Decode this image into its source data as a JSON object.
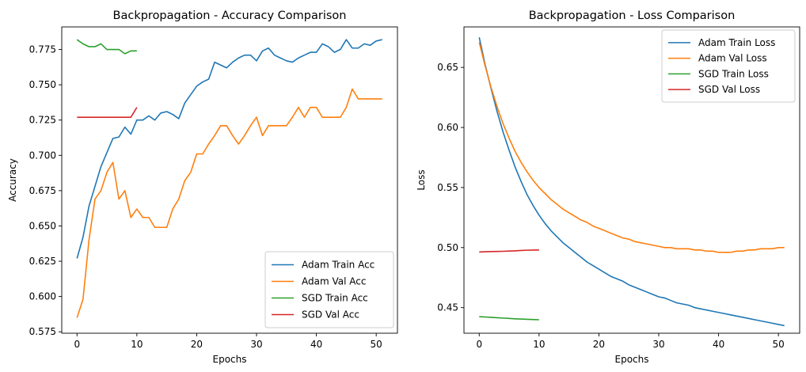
{
  "colors": {
    "adam_train": "#1f77b4",
    "adam_val": "#ff7f0e",
    "sgd_train": "#2ca02c",
    "sgd_val": "#d62728"
  },
  "chart_data": [
    {
      "type": "line",
      "title": "Backpropagation - Accuracy Comparison",
      "xlabel": "Epochs",
      "ylabel": "Accuracy",
      "xlim": [
        -2.55,
        53.55
      ],
      "ylim": [
        0.574,
        0.791
      ],
      "xticks": [
        0,
        10,
        20,
        30,
        40,
        50
      ],
      "yticks": [
        0.575,
        0.6,
        0.625,
        0.65,
        0.675,
        0.7,
        0.725,
        0.75,
        0.775
      ],
      "ytick_labels": [
        "0.575",
        "0.600",
        "0.625",
        "0.650",
        "0.675",
        "0.700",
        "0.725",
        "0.750",
        "0.775"
      ],
      "legend_position": "lower right",
      "grid": false,
      "series": [
        {
          "name": "Adam Train Acc",
          "color": "#1f77b4",
          "x0": 0,
          "values": [
            0.627,
            0.642,
            0.664,
            0.678,
            0.692,
            0.702,
            0.712,
            0.713,
            0.72,
            0.715,
            0.725,
            0.725,
            0.728,
            0.725,
            0.73,
            0.731,
            0.729,
            0.726,
            0.737,
            0.743,
            0.749,
            0.752,
            0.754,
            0.766,
            0.764,
            0.762,
            0.766,
            0.769,
            0.771,
            0.771,
            0.767,
            0.774,
            0.776,
            0.771,
            0.769,
            0.767,
            0.766,
            0.769,
            0.771,
            0.773,
            0.773,
            0.779,
            0.777,
            0.773,
            0.775,
            0.782,
            0.776,
            0.776,
            0.779,
            0.778,
            0.781,
            0.782
          ]
        },
        {
          "name": "Adam Val Acc",
          "color": "#ff7f0e",
          "x0": 0,
          "values": [
            0.585,
            0.598,
            0.64,
            0.669,
            0.675,
            0.688,
            0.695,
            0.669,
            0.675,
            0.656,
            0.662,
            0.656,
            0.656,
            0.649,
            0.649,
            0.649,
            0.662,
            0.669,
            0.682,
            0.688,
            0.701,
            0.701,
            0.708,
            0.714,
            0.721,
            0.721,
            0.714,
            0.708,
            0.714,
            0.721,
            0.727,
            0.714,
            0.721,
            0.721,
            0.721,
            0.721,
            0.727,
            0.734,
            0.727,
            0.734,
            0.734,
            0.727,
            0.727,
            0.727,
            0.727,
            0.734,
            0.747,
            0.74,
            0.74,
            0.74,
            0.74,
            0.74
          ]
        },
        {
          "name": "SGD Train Acc",
          "color": "#2ca02c",
          "x0": 0,
          "values": [
            0.782,
            0.779,
            0.777,
            0.777,
            0.779,
            0.775,
            0.775,
            0.775,
            0.772,
            0.774,
            0.774
          ]
        },
        {
          "name": "SGD Val Acc",
          "color": "#d62728",
          "x0": 0,
          "values": [
            0.727,
            0.727,
            0.727,
            0.727,
            0.727,
            0.727,
            0.727,
            0.727,
            0.727,
            0.727,
            0.734
          ]
        }
      ]
    },
    {
      "type": "line",
      "title": "Backpropagation - Loss Comparison",
      "xlabel": "Epochs",
      "ylabel": "Loss",
      "xlim": [
        -2.55,
        53.55
      ],
      "ylim": [
        0.4287,
        0.6837
      ],
      "xticks": [
        0,
        10,
        20,
        30,
        40,
        50
      ],
      "yticks": [
        0.45,
        0.5,
        0.55,
        0.6,
        0.65
      ],
      "ytick_labels": [
        "0.45",
        "0.50",
        "0.55",
        "0.60",
        "0.65"
      ],
      "legend_position": "upper right",
      "grid": false,
      "series": [
        {
          "name": "Adam Train Loss",
          "color": "#1f77b4",
          "x0": 0,
          "values": [
            0.675,
            0.652,
            0.632,
            0.613,
            0.596,
            0.581,
            0.567,
            0.555,
            0.544,
            0.535,
            0.527,
            0.52,
            0.514,
            0.509,
            0.504,
            0.5,
            0.496,
            0.492,
            0.488,
            0.485,
            0.482,
            0.479,
            0.476,
            0.474,
            0.472,
            0.469,
            0.467,
            0.465,
            0.463,
            0.461,
            0.459,
            0.458,
            0.456,
            0.454,
            0.453,
            0.452,
            0.45,
            0.449,
            0.448,
            0.447,
            0.446,
            0.445,
            0.444,
            0.443,
            0.442,
            0.441,
            0.44,
            0.439,
            0.438,
            0.437,
            0.436,
            0.435
          ]
        },
        {
          "name": "Adam Val Loss",
          "color": "#ff7f0e",
          "x0": 0,
          "values": [
            0.671,
            0.651,
            0.633,
            0.617,
            0.603,
            0.591,
            0.58,
            0.571,
            0.563,
            0.556,
            0.55,
            0.545,
            0.54,
            0.536,
            0.532,
            0.529,
            0.526,
            0.523,
            0.521,
            0.518,
            0.516,
            0.514,
            0.512,
            0.51,
            0.508,
            0.507,
            0.505,
            0.504,
            0.503,
            0.502,
            0.501,
            0.5,
            0.5,
            0.499,
            0.499,
            0.499,
            0.498,
            0.498,
            0.497,
            0.497,
            0.496,
            0.496,
            0.496,
            0.497,
            0.497,
            0.498,
            0.498,
            0.499,
            0.499,
            0.499,
            0.5,
            0.5
          ]
        },
        {
          "name": "SGD Train Loss",
          "color": "#2ca02c",
          "x0": 0,
          "values": [
            0.4425,
            0.4422,
            0.4419,
            0.4416,
            0.4413,
            0.441,
            0.4407,
            0.4405,
            0.4403,
            0.4401,
            0.4399
          ]
        },
        {
          "name": "SGD Val Loss",
          "color": "#d62728",
          "x0": 0,
          "values": [
            0.4963,
            0.4965,
            0.4967,
            0.4968,
            0.4969,
            0.4971,
            0.4973,
            0.4976,
            0.4978,
            0.4979,
            0.498
          ]
        }
      ]
    }
  ]
}
